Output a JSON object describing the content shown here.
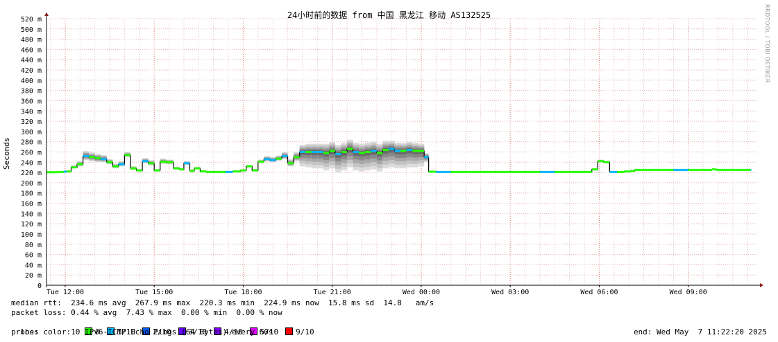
{
  "title": "24小时前的数据 from 中国 黑龙江 移动 AS132525",
  "rrdtool_label": "RRDTOOL / TOBI OETIKER",
  "chart_data": {
    "type": "line",
    "ylabel": "Seconds",
    "ylim": [
      0,
      0.52
    ],
    "y_ticks": [
      {
        "v": 0,
        "label": "0"
      },
      {
        "v": 0.02,
        "label": "20 m"
      },
      {
        "v": 0.04,
        "label": "40 m"
      },
      {
        "v": 0.06,
        "label": "60 m"
      },
      {
        "v": 0.08,
        "label": "80 m"
      },
      {
        "v": 0.1,
        "label": "100 m"
      },
      {
        "v": 0.12,
        "label": "120 m"
      },
      {
        "v": 0.14,
        "label": "140 m"
      },
      {
        "v": 0.16,
        "label": "160 m"
      },
      {
        "v": 0.18,
        "label": "180 m"
      },
      {
        "v": 0.2,
        "label": "200 m"
      },
      {
        "v": 0.22,
        "label": "220 m"
      },
      {
        "v": 0.24,
        "label": "240 m"
      },
      {
        "v": 0.26,
        "label": "260 m"
      },
      {
        "v": 0.28,
        "label": "280 m"
      },
      {
        "v": 0.3,
        "label": "300 m"
      },
      {
        "v": 0.32,
        "label": "320 m"
      },
      {
        "v": 0.34,
        "label": "340 m"
      },
      {
        "v": 0.36,
        "label": "360 m"
      },
      {
        "v": 0.38,
        "label": "380 m"
      },
      {
        "v": 0.4,
        "label": "400 m"
      },
      {
        "v": 0.42,
        "label": "420 m"
      },
      {
        "v": 0.44,
        "label": "440 m"
      },
      {
        "v": 0.46,
        "label": "460 m"
      },
      {
        "v": 0.48,
        "label": "480 m"
      },
      {
        "v": 0.5,
        "label": "500 m"
      },
      {
        "v": 0.52,
        "label": "520 m"
      }
    ],
    "x_ticks": [
      {
        "h": 12,
        "label": "Tue 12:00"
      },
      {
        "h": 15,
        "label": "Tue 15:00"
      },
      {
        "h": 18,
        "label": "Tue 18:00"
      },
      {
        "h": 21,
        "label": "Tue 21:00"
      },
      {
        "h": 24,
        "label": "Wed 00:00"
      },
      {
        "h": 27,
        "label": "Wed 03:00"
      },
      {
        "h": 30,
        "label": "Wed 06:00"
      },
      {
        "h": 33,
        "label": "Wed 09:00"
      }
    ],
    "xlim": [
      11.37,
      35.37
    ],
    "data_end_h": 35.1,
    "grid": true,
    "series": [
      {
        "name": "median rtt",
        "note": "x in hours since Tue 00:00, values in ms; smokeband = min/max spread (ms)",
        "points": [
          [
            11.37,
            220.5,
            0,
            0
          ],
          [
            11.55,
            220.5,
            0,
            0
          ],
          [
            11.75,
            221,
            0,
            0
          ],
          [
            11.95,
            221.5,
            0,
            0
          ],
          [
            12.05,
            222,
            0,
            0
          ],
          [
            12.2,
            230,
            4,
            2
          ],
          [
            12.4,
            236,
            6,
            4
          ],
          [
            12.6,
            252,
            10,
            8
          ],
          [
            12.8,
            250,
            9,
            8
          ],
          [
            13.0,
            248,
            8,
            8
          ],
          [
            13.2,
            246,
            8,
            6
          ],
          [
            13.4,
            240,
            6,
            4
          ],
          [
            13.6,
            232,
            5,
            4
          ],
          [
            13.8,
            236,
            6,
            4
          ],
          [
            14.0,
            254,
            6,
            4
          ],
          [
            14.2,
            228,
            4,
            3
          ],
          [
            14.4,
            224,
            3,
            2
          ],
          [
            14.6,
            242,
            6,
            4
          ],
          [
            14.8,
            238,
            6,
            4
          ],
          [
            15.0,
            224,
            3,
            2
          ],
          [
            15.2,
            241,
            6,
            4
          ],
          [
            15.4,
            240,
            5,
            4
          ],
          [
            15.65,
            228,
            3,
            2
          ],
          [
            15.85,
            226,
            3,
            2
          ],
          [
            16.0,
            238,
            4,
            3
          ],
          [
            16.2,
            223,
            3,
            2
          ],
          [
            16.35,
            228,
            3,
            2
          ],
          [
            16.55,
            222,
            2,
            1
          ],
          [
            16.75,
            221,
            2,
            1
          ],
          [
            17.0,
            221,
            2,
            1
          ],
          [
            17.2,
            221,
            2,
            1
          ],
          [
            17.4,
            221,
            2,
            1
          ],
          [
            17.65,
            222,
            2,
            1
          ],
          [
            17.9,
            224,
            2,
            1
          ],
          [
            18.1,
            232,
            3,
            2
          ],
          [
            18.3,
            224,
            3,
            2
          ],
          [
            18.5,
            241,
            4,
            3
          ],
          [
            18.7,
            246,
            6,
            4
          ],
          [
            18.9,
            244,
            6,
            4
          ],
          [
            19.1,
            247,
            6,
            4
          ],
          [
            19.3,
            252,
            8,
            6
          ],
          [
            19.5,
            238,
            8,
            6
          ],
          [
            19.7,
            250,
            10,
            8
          ],
          [
            19.9,
            260,
            14,
            28
          ],
          [
            20.1,
            260,
            16,
            30
          ],
          [
            20.3,
            260,
            16,
            32
          ],
          [
            20.5,
            260,
            16,
            32
          ],
          [
            20.7,
            258,
            18,
            34
          ],
          [
            20.9,
            262,
            18,
            34
          ],
          [
            21.1,
            256,
            18,
            36
          ],
          [
            21.3,
            260,
            18,
            36
          ],
          [
            21.5,
            266,
            18,
            36
          ],
          [
            21.7,
            260,
            18,
            36
          ],
          [
            21.9,
            258,
            18,
            36
          ],
          [
            22.1,
            260,
            18,
            36
          ],
          [
            22.3,
            262,
            18,
            36
          ],
          [
            22.5,
            258,
            18,
            36
          ],
          [
            22.7,
            264,
            18,
            36
          ],
          [
            22.9,
            266,
            16,
            36
          ],
          [
            23.1,
            262,
            16,
            34
          ],
          [
            23.3,
            262,
            16,
            34
          ],
          [
            23.5,
            264,
            16,
            34
          ],
          [
            23.7,
            262,
            16,
            32
          ],
          [
            23.9,
            262,
            14,
            30
          ],
          [
            24.1,
            250,
            8,
            10
          ],
          [
            24.25,
            221.5,
            1,
            1
          ],
          [
            24.5,
            221,
            1,
            1
          ],
          [
            25.0,
            221,
            1,
            1
          ],
          [
            25.5,
            221,
            1,
            1
          ],
          [
            26.0,
            221,
            1,
            1
          ],
          [
            26.5,
            221,
            1,
            1
          ],
          [
            27.0,
            221,
            1,
            1
          ],
          [
            27.5,
            221,
            1,
            1
          ],
          [
            28.0,
            221,
            1,
            1
          ],
          [
            28.5,
            221,
            1,
            1
          ],
          [
            29.0,
            221,
            1,
            1
          ],
          [
            29.5,
            221,
            1,
            1
          ],
          [
            29.75,
            226,
            1,
            1
          ],
          [
            29.95,
            242,
            3,
            2
          ],
          [
            30.15,
            240,
            3,
            2
          ],
          [
            30.35,
            221,
            1,
            1
          ],
          [
            30.6,
            221,
            1,
            1
          ],
          [
            30.85,
            222,
            1,
            1
          ],
          [
            31.05,
            223,
            1,
            1
          ],
          [
            31.2,
            225,
            1,
            1
          ],
          [
            31.5,
            225,
            1,
            1
          ],
          [
            32.0,
            225,
            1,
            1
          ],
          [
            32.5,
            225,
            1,
            1
          ],
          [
            33.0,
            225,
            1,
            1
          ],
          [
            33.5,
            225,
            1,
            1
          ],
          [
            33.8,
            226,
            1,
            1
          ],
          [
            33.95,
            225,
            1,
            1
          ],
          [
            34.3,
            225,
            1,
            1
          ],
          [
            34.7,
            225,
            1,
            1
          ],
          [
            35.1,
            225,
            1,
            1
          ]
        ]
      }
    ],
    "loss_colors": {
      "0": "#26ff00",
      "1/10": "#00b8ff",
      "2/10": "#0059ff",
      "3/10": "#5e00ff",
      "4/10": "#7e00ff",
      "5/10": "#dd00ff",
      "9/10": "#ff0000"
    }
  },
  "stats": {
    "median_rtt": "median rtt:  234.6 ms avg  267.9 ms max  220.3 ms min  224.9 ms now  15.8 ms sd  14.8   am/s",
    "packet_loss": "packet loss: 0.44 % avg  7.43 % max  0.00 % min  0.00 % now",
    "loss_color_label": "loss color:",
    "probe": "probe:       10 IPv6-ICMP Echo Pings (64 Bytes) every 60s",
    "end": "end: Wed May  7 11:22:20 2025"
  },
  "loss_legend": [
    {
      "label": "0",
      "color": "#26ff00"
    },
    {
      "label": "1/10",
      "color": "#00b8ff"
    },
    {
      "label": "2/10",
      "color": "#0059ff"
    },
    {
      "label": "3/10",
      "color": "#5e00ff"
    },
    {
      "label": "4/10",
      "color": "#7e00ff"
    },
    {
      "label": "5/10",
      "color": "#dd00ff"
    },
    {
      "label": "9/10",
      "color": "#ff0000"
    }
  ]
}
